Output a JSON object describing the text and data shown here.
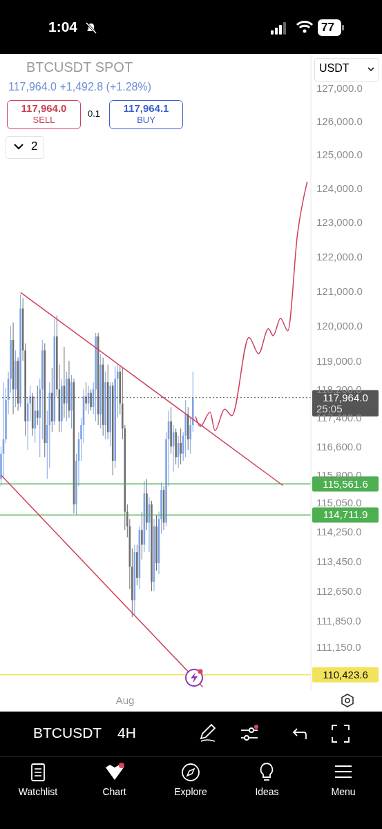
{
  "chart_data": {
    "type": "candlestick",
    "title": "BTCUSDT SPOT",
    "subtitle": "117,964.0 +1,492.8 (+1.28%)",
    "annotations": [
      "117,964.0",
      "SELL",
      "0.1",
      "117,964.1",
      "BUY",
      "2",
      "USDT",
      "1:04",
      "77",
      "BTCUSDT",
      "4H",
      "Watchlist",
      "Chart",
      "Explore",
      "Ideas",
      "Menu",
      "25:05"
    ],
    "categories": [
      null,
      null,
      null,
      null,
      null,
      null,
      null,
      null,
      null,
      null,
      null,
      null,
      null,
      null,
      null,
      null,
      null,
      null,
      null,
      null,
      null,
      null,
      null,
      null,
      null,
      null,
      null,
      null,
      null,
      null,
      null,
      null,
      null,
      null,
      null,
      null,
      null,
      null,
      null,
      null,
      null,
      null,
      null,
      null,
      null,
      null,
      null,
      null,
      null,
      null,
      null,
      "Aug",
      null,
      null,
      null,
      null,
      null,
      null,
      null,
      null,
      null,
      null,
      null,
      null,
      null,
      null,
      null,
      null,
      null,
      null,
      null,
      null,
      null,
      null,
      null,
      null,
      null,
      null,
      null,
      null,
      null,
      null,
      null,
      null,
      null,
      null,
      null,
      null,
      null,
      null,
      null,
      null,
      null,
      null,
      null,
      null,
      null,
      null,
      null,
      null,
      null,
      null,
      null,
      null,
      null,
      null,
      null,
      null,
      null,
      null,
      null,
      null,
      null,
      null,
      null,
      null,
      null,
      null,
      null,
      null,
      null,
      null,
      null,
      null,
      null,
      null,
      null,
      null
    ],
    "ohlc": [
      [
        115700,
        116600,
        115500,
        116400
      ],
      [
        116400,
        118400,
        115750,
        116800
      ],
      [
        116800,
        118250,
        116700,
        117900
      ],
      [
        117900,
        118700,
        117500,
        118500
      ],
      [
        118500,
        120000,
        118100,
        119600
      ],
      [
        119600,
        120100,
        117500,
        118200
      ],
      [
        118200,
        119300,
        117700,
        119000
      ],
      [
        119000,
        119100,
        117600,
        117800
      ],
      [
        117800,
        120900,
        117700,
        120500
      ],
      [
        120500,
        120800,
        119000,
        119300
      ],
      [
        119300,
        119500,
        116900,
        117300
      ],
      [
        117300,
        118000,
        116500,
        117800
      ],
      [
        117800,
        118300,
        117300,
        118000
      ],
      [
        118000,
        118100,
        116900,
        117100
      ],
      [
        117100,
        118000,
        116700,
        117600
      ],
      [
        117600,
        118300,
        117200,
        117400
      ],
      [
        117400,
        118500,
        116300,
        118200
      ],
      [
        118200,
        119600,
        116800,
        119300
      ],
      [
        119300,
        119500,
        116300,
        116700
      ],
      [
        116700,
        117600,
        115700,
        117200
      ],
      [
        117200,
        118400,
        116000,
        118100
      ],
      [
        118100,
        118800,
        117000,
        117300
      ],
      [
        117300,
        120200,
        117200,
        119700
      ],
      [
        119700,
        120300,
        118000,
        118200
      ],
      [
        118200,
        118900,
        117000,
        117300
      ],
      [
        117300,
        118500,
        117000,
        118300
      ],
      [
        118300,
        119400,
        117400,
        117800
      ],
      [
        117800,
        118700,
        117300,
        118500
      ],
      [
        118500,
        119000,
        117400,
        117600
      ],
      [
        117600,
        118600,
        117100,
        118400
      ],
      [
        118400,
        118500,
        114750,
        115000
      ],
      [
        115000,
        116400,
        114700,
        116200
      ],
      [
        116200,
        117000,
        115500,
        116800
      ],
      [
        116800,
        117400,
        116200,
        117200
      ],
      [
        117200,
        118200,
        116700,
        118000
      ],
      [
        118000,
        118400,
        117600,
        117800
      ],
      [
        117800,
        118300,
        117500,
        118100
      ],
      [
        118100,
        118200,
        117600,
        117700
      ],
      [
        117700,
        118400,
        117500,
        118200
      ],
      [
        118200,
        119800,
        117300,
        119700
      ],
      [
        119700,
        119800,
        117200,
        117500
      ],
      [
        117500,
        119200,
        117100,
        118900
      ],
      [
        118900,
        119100,
        116900,
        117200
      ],
      [
        117200,
        118700,
        116800,
        118400
      ],
      [
        118400,
        118900,
        116800,
        117000
      ],
      [
        117000,
        118400,
        116600,
        118300
      ],
      [
        118300,
        118400,
        115800,
        116200
      ],
      [
        116200,
        118850,
        116000,
        118500
      ],
      [
        118500,
        118900,
        117400,
        118700
      ],
      [
        118700,
        118850,
        117500,
        117800
      ],
      [
        117800,
        118800,
        116800,
        117100
      ],
      [
        117100,
        117200,
        114300,
        114800
      ],
      [
        114800,
        115000,
        114100,
        114400
      ],
      [
        114400,
        114600,
        112700,
        113300
      ],
      [
        113300,
        113800,
        111950,
        112400
      ],
      [
        112400,
        113900,
        112000,
        113700
      ],
      [
        113700,
        113900,
        112800,
        113000
      ],
      [
        113000,
        114400,
        112700,
        114300
      ],
      [
        114300,
        114800,
        113500,
        113900
      ],
      [
        113900,
        115650,
        113700,
        115300
      ],
      [
        115300,
        115700,
        114300,
        114500
      ],
      [
        114500,
        115200,
        113700,
        115000
      ],
      [
        115000,
        115100,
        112650,
        112900
      ],
      [
        112900,
        114600,
        112650,
        114400
      ],
      [
        114400,
        114700,
        113200,
        113400
      ],
      [
        113400,
        114800,
        113100,
        114600
      ],
      [
        114600,
        115600,
        114200,
        115400
      ],
      [
        115400,
        115500,
        114300,
        114500
      ],
      [
        114500,
        117000,
        114400,
        116800
      ],
      [
        116800,
        117600,
        115500,
        117300
      ],
      [
        117300,
        117700,
        116400,
        116600
      ],
      [
        116600,
        117200,
        115900,
        117000
      ],
      [
        117000,
        117100,
        116100,
        116300
      ],
      [
        116300,
        116900,
        116000,
        116700
      ],
      [
        116700,
        117100,
        116100,
        116400
      ],
      [
        116400,
        117000,
        116200,
        116900
      ],
      [
        116900,
        117900,
        116300,
        117500
      ],
      [
        117500,
        117700,
        116500,
        116800
      ],
      [
        116800,
        117400,
        116400,
        117200
      ],
      [
        117200,
        118700,
        117000,
        117964
      ],
      null,
      null,
      null,
      null,
      null,
      null,
      null,
      null,
      null,
      null,
      null,
      null,
      null,
      null,
      null,
      null,
      null,
      null,
      null,
      null,
      null,
      null,
      null,
      null,
      null,
      null,
      null,
      null,
      null,
      null,
      null,
      null,
      null,
      null,
      null,
      null,
      null,
      null,
      null,
      null,
      null,
      null,
      null,
      null,
      null,
      null,
      null,
      null
    ],
    "colors": [
      "#7da3e6",
      "#7da3e6",
      "#7da3e6",
      "#7da3e6",
      "#7da3e6",
      "#6e6e6e",
      "#7da3e6",
      "#6e6e6e",
      "#7da3e6",
      "#6e6e6e",
      "#6e6e6e",
      "#7da3e6",
      "#7da3e6",
      "#6e6e6e",
      "#7da3e6",
      "#6e6e6e",
      "#7da3e6",
      "#7da3e6",
      "#6e6e6e",
      "#7da3e6",
      "#7da3e6",
      "#6e6e6e",
      "#7da3e6",
      "#6e6e6e",
      "#6e6e6e",
      "#7da3e6",
      "#6e6e6e",
      "#7da3e6",
      "#6e6e6e",
      "#7da3e6",
      "#6e6e6e",
      "#7da3e6",
      "#7da3e6",
      "#7da3e6",
      "#7da3e6",
      "#6e6e6e",
      "#7da3e6",
      "#6e6e6e",
      "#7da3e6",
      "#7da3e6",
      "#6e6e6e",
      "#7da3e6",
      "#6e6e6e",
      "#7da3e6",
      "#6e6e6e",
      "#7da3e6",
      "#6e6e6e",
      "#7da3e6",
      "#7da3e6",
      "#6e6e6e",
      "#6e6e6e",
      "#6e6e6e",
      "#6e6e6e",
      "#6e6e6e",
      "#6e6e6e",
      "#7da3e6",
      "#6e6e6e",
      "#7da3e6",
      "#6e6e6e",
      "#7da3e6",
      "#6e6e6e",
      "#7da3e6",
      "#6e6e6e",
      "#7da3e6",
      "#6e6e6e",
      "#7da3e6",
      "#7da3e6",
      "#6e6e6e",
      "#7da3e6",
      "#7da3e6",
      "#6e6e6e",
      "#7da3e6",
      "#6e6e6e",
      "#7da3e6",
      "#6e6e6e",
      "#7da3e6",
      "#7da3e6",
      "#6e6e6e",
      "#7da3e6",
      "#7da3e6",
      null,
      null,
      null,
      null,
      null,
      null,
      null,
      null,
      null,
      null,
      null,
      null,
      null,
      null,
      null,
      null,
      null,
      null,
      null,
      null,
      null,
      null,
      null,
      null,
      null,
      null,
      null,
      null,
      null,
      null,
      null,
      null,
      null,
      null,
      null,
      null,
      null,
      null,
      null,
      null,
      null,
      null,
      null,
      null,
      null,
      null,
      null,
      null
    ],
    "series": [
      {
        "type": "line",
        "color": "#d0405a",
        "values": [
          null,
          null,
          null,
          null,
          null,
          null,
          null,
          null,
          120960,
          null,
          null,
          null,
          null,
          null,
          null,
          null,
          null,
          null,
          null,
          null,
          null,
          null,
          null,
          null,
          null,
          null,
          null,
          null,
          null,
          null,
          null,
          null,
          null,
          null,
          null,
          null,
          null,
          null,
          null,
          null,
          null,
          null,
          null,
          null,
          null,
          null,
          null,
          null,
          null,
          null,
          null,
          null,
          null,
          null,
          null,
          null,
          null,
          null,
          null,
          null,
          null,
          null,
          null,
          null,
          null,
          null,
          null,
          null,
          null,
          null,
          null,
          null,
          null,
          null,
          null,
          null,
          null,
          null,
          null,
          null,
          null,
          null,
          null,
          null,
          null,
          null,
          null,
          null,
          null,
          null,
          null,
          null,
          null,
          null,
          null,
          null,
          null,
          null,
          null,
          null,
          null,
          null,
          null,
          null,
          null,
          null,
          null,
          null,
          null,
          null,
          null,
          null,
          null,
          null,
          null,
          null,
          115520,
          null,
          null,
          null,
          null,
          null,
          null,
          null,
          null,
          null,
          null,
          null
        ]
      },
      {
        "type": "line",
        "color": "#d0405a",
        "values": [
          115800,
          null,
          null,
          null,
          null,
          null,
          null,
          null,
          null,
          null,
          null,
          null,
          null,
          null,
          null,
          null,
          null,
          null,
          null,
          null,
          null,
          null,
          null,
          null,
          null,
          null,
          null,
          null,
          null,
          null,
          null,
          null,
          null,
          null,
          null,
          null,
          null,
          null,
          null,
          null,
          null,
          null,
          null,
          null,
          null,
          null,
          null,
          null,
          null,
          null,
          null,
          null,
          null,
          null,
          null,
          null,
          null,
          null,
          null,
          null,
          null,
          null,
          null,
          null,
          null,
          null,
          null,
          null,
          null,
          null,
          null,
          null,
          null,
          null,
          null,
          null,
          null,
          null,
          null,
          null,
          null,
          null,
          null,
          110100,
          null,
          null,
          null,
          null,
          null,
          null,
          null,
          null,
          null,
          null,
          null,
          null,
          null,
          null,
          null,
          null,
          null,
          null,
          null,
          null,
          null,
          null,
          null,
          null,
          null,
          null,
          null,
          null,
          null,
          null,
          null,
          null,
          null,
          null,
          null,
          null,
          null,
          null,
          null,
          null,
          null,
          null,
          null,
          null
        ]
      },
      {
        "type": "line",
        "color": "#d0405a",
        "values": [
          null,
          null,
          null,
          null,
          null,
          null,
          null,
          null,
          null,
          null,
          null,
          null,
          null,
          null,
          null,
          null,
          null,
          null,
          null,
          null,
          null,
          null,
          null,
          null,
          null,
          null,
          null,
          null,
          null,
          null,
          null,
          null,
          null,
          null,
          null,
          null,
          null,
          null,
          null,
          null,
          null,
          null,
          null,
          null,
          null,
          null,
          null,
          null,
          null,
          null,
          null,
          null,
          null,
          null,
          null,
          null,
          null,
          null,
          null,
          null,
          null,
          null,
          null,
          null,
          null,
          null,
          null,
          null,
          null,
          null,
          null,
          null,
          null,
          null,
          null,
          null,
          null,
          null,
          null,
          null,
          117440,
          null,
          117160,
          null,
          null,
          null,
          117560,
          null,
          117040,
          null,
          null,
          null,
          117640,
          null,
          null,
          117460,
          null,
          null,
          null,
          null,
          null,
          null,
          119670,
          null,
          null,
          null,
          119210,
          null,
          null,
          null,
          119920,
          null,
          119720,
          null,
          null,
          120220,
          null,
          null,
          119860,
          null,
          null,
          null,
          122660,
          null,
          null,
          null,
          124200,
          null
        ]
      }
    ],
    "ref_lines": [
      {
        "axis": "y",
        "value": 117964,
        "label": "117,964.0",
        "color": "#555555",
        "line_style": "dotted"
      },
      {
        "axis": "y",
        "value": 115561.6,
        "label": "115,561.6",
        "color": "#4caf50"
      },
      {
        "axis": "y",
        "value": 114711.9,
        "label": "114,711.9",
        "color": "#4caf50"
      },
      {
        "axis": "y",
        "value": 110423.6,
        "label": "110,423.6",
        "color": "#f2e35c"
      }
    ],
    "log": "y",
    "ylim": [
      110000,
      128000
    ],
    "yticks": [
      {
        "value": 127000,
        "label": "127,000.0"
      },
      {
        "value": 126000,
        "label": "126,000.0"
      },
      {
        "value": 125000,
        "label": "125,000.0"
      },
      {
        "value": 124000,
        "label": "124,000.0"
      },
      {
        "value": 123000,
        "label": "123,000.0"
      },
      {
        "value": 122000,
        "label": "122,000.0"
      },
      {
        "value": 121000,
        "label": "121,000.0"
      },
      {
        "value": 120000,
        "label": "120,000.0"
      },
      {
        "value": 119000,
        "label": "119,000.0"
      },
      {
        "value": 118200,
        "label": "118,200.0"
      },
      {
        "value": 117400,
        "label": "117,400.0"
      },
      {
        "value": 116600,
        "label": "116,600.0"
      },
      {
        "value": 115800,
        "label": "115,800.0"
      },
      {
        "value": 115050,
        "label": "115,050.0"
      },
      {
        "value": 114250,
        "label": "114,250.0"
      },
      {
        "value": 113450,
        "label": "113,450.0"
      },
      {
        "value": 112650,
        "label": "112,650.0"
      },
      {
        "value": 111850,
        "label": "111,850.0"
      },
      {
        "value": 111150,
        "label": "111,150.0"
      }
    ]
  }
}
